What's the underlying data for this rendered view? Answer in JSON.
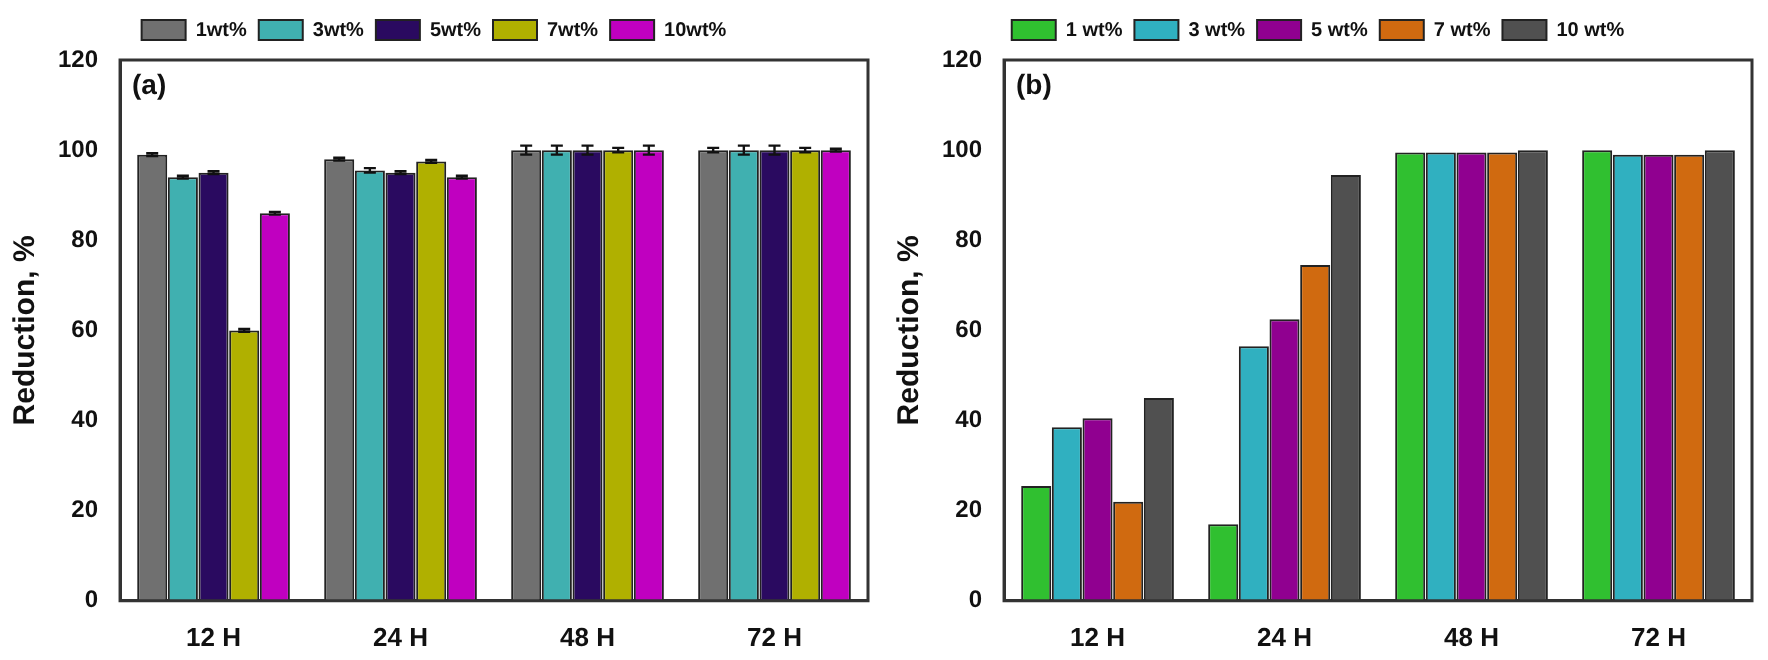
{
  "chart_data": [
    {
      "type": "bar",
      "annotations": [
        "(a)"
      ],
      "ylabel": "Reduction, %",
      "categories": [
        "12 H",
        "24 H",
        "48 H",
        "72 H"
      ],
      "series": [
        {
          "name": "1wt%",
          "color": "#707070",
          "values": [
            99,
            98,
            100,
            100
          ],
          "errors": [
            0.3,
            0.3,
            1,
            0.5
          ]
        },
        {
          "name": "3wt%",
          "color": "#40b0b0",
          "values": [
            94,
            95.5,
            100,
            100
          ],
          "errors": [
            0.3,
            0.5,
            1,
            1
          ]
        },
        {
          "name": "5wt%",
          "color": "#2a0a60",
          "values": [
            95,
            95,
            100,
            100
          ],
          "errors": [
            0.3,
            0.3,
            1,
            1
          ]
        },
        {
          "name": "7wt%",
          "color": "#b0b000",
          "values": [
            60,
            97.5,
            100,
            100
          ],
          "errors": [
            0.3,
            0.3,
            0.5,
            0.5
          ]
        },
        {
          "name": "10wt%",
          "color": "#c000c0",
          "values": [
            86,
            94,
            100,
            100
          ],
          "errors": [
            0.3,
            0.3,
            1,
            0.3
          ]
        }
      ],
      "ylim": [
        0,
        120
      ],
      "yticks": [
        0,
        20,
        40,
        60,
        80,
        100,
        120
      ],
      "grid": false,
      "legend": "top"
    },
    {
      "type": "bar",
      "annotations": [
        "(b)"
      ],
      "ylabel": "Reduction, %",
      "categories": [
        "12 H",
        "24 H",
        "48 H",
        "72 H"
      ],
      "series": [
        {
          "name": "1 wt%",
          "color": "#30c030",
          "values": [
            25.5,
            17,
            99.5,
            100
          ]
        },
        {
          "name": "3 wt%",
          "color": "#30b0c0",
          "values": [
            38.5,
            56.5,
            99.5,
            99
          ]
        },
        {
          "name": "5 wt%",
          "color": "#900090",
          "values": [
            40.5,
            62.5,
            99.5,
            99
          ]
        },
        {
          "name": "7 wt%",
          "color": "#d06a10",
          "values": [
            22,
            74.5,
            99.5,
            99
          ]
        },
        {
          "name": "10 wt%",
          "color": "#505050",
          "values": [
            45,
            94.5,
            100,
            100
          ]
        }
      ],
      "ylim": [
        0,
        120
      ],
      "yticks": [
        0,
        20,
        40,
        60,
        80,
        100,
        120
      ],
      "grid": false,
      "legend": "top"
    }
  ]
}
